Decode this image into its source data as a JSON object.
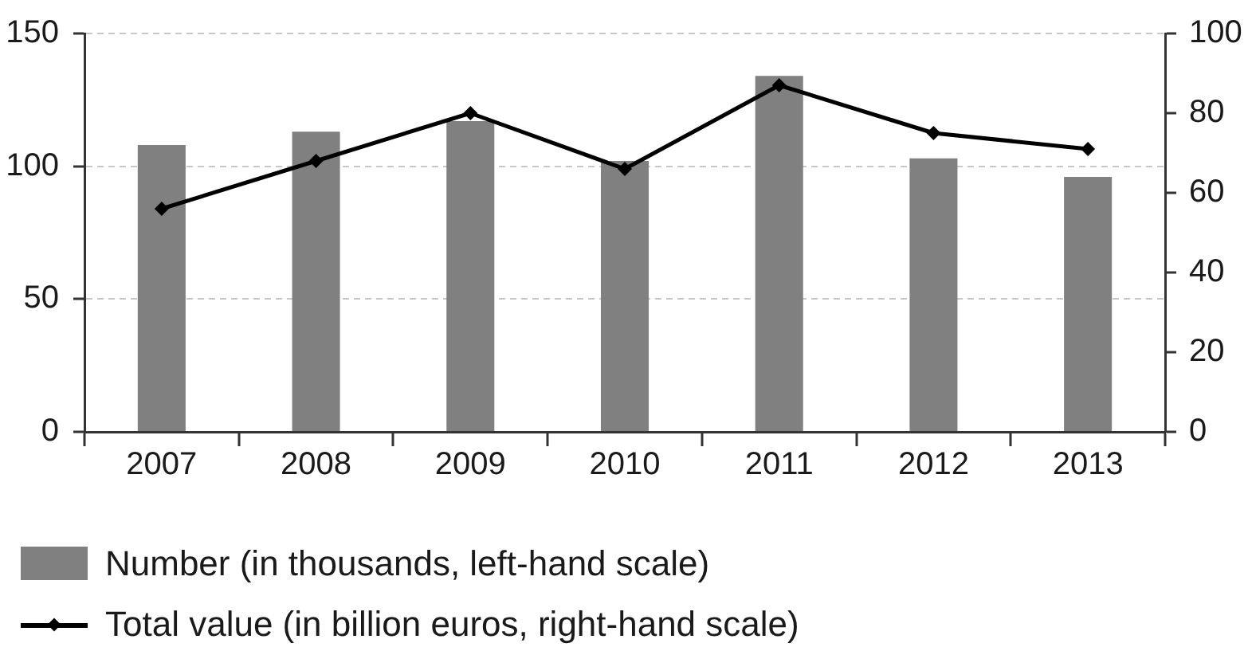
{
  "chart_data": {
    "type": "bar",
    "categories": [
      "2007",
      "2008",
      "2009",
      "2010",
      "2011",
      "2012",
      "2013"
    ],
    "series": [
      {
        "name": "Number (in thousands, left-hand scale)",
        "color": "#808080",
        "values": [
          108,
          113,
          117,
          102,
          134,
          103,
          96
        ]
      },
      {
        "name": "Total value (in billion euros, right-hand scale)",
        "type": "line",
        "axis": "y2",
        "color": "#000000",
        "values": [
          56,
          68,
          80,
          66,
          87,
          75,
          71
        ]
      }
    ],
    "ylim": [
      0,
      150
    ],
    "yticks": [
      0,
      50,
      100,
      150
    ],
    "y2lim": [
      0,
      100
    ],
    "y2ticks": [
      0,
      20,
      40,
      60,
      80,
      100
    ],
    "grid": "y",
    "legend": "bottom left",
    "marker": "diamond"
  }
}
